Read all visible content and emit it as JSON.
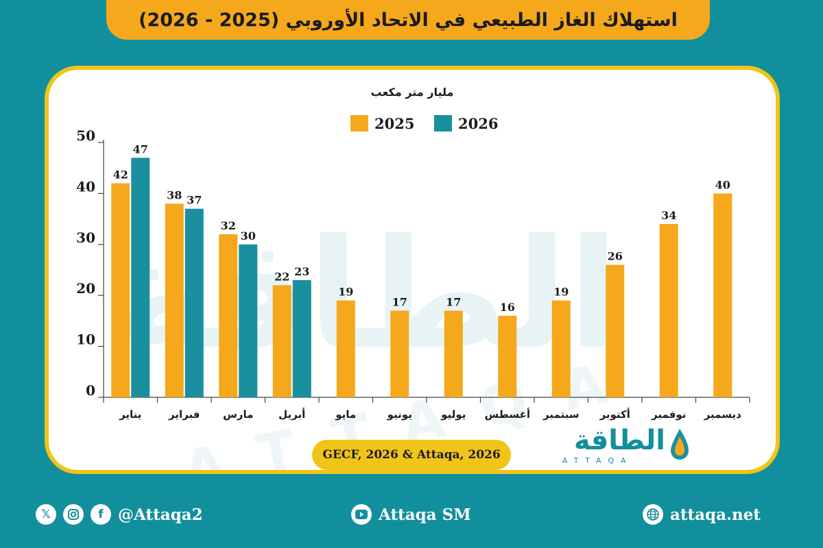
{
  "header": {
    "title": "استهلاك الغاز الطبيعي في الاتحاد الأوروبي (2025 - 2026)"
  },
  "chart_data": {
    "type": "bar",
    "unit_label": "مليار متر مكعب",
    "categories": [
      "يناير",
      "فبراير",
      "مارس",
      "أبريل",
      "مايو",
      "يونيو",
      "يوليو",
      "أغسطس",
      "سبتمبر",
      "أكتوبر",
      "نوفمبر",
      "ديسمبر"
    ],
    "series": [
      {
        "name": "2025",
        "color": "#f5a81c",
        "values": [
          42,
          38,
          32,
          22,
          19,
          17,
          17,
          16,
          19,
          26,
          34,
          40
        ]
      },
      {
        "name": "2026",
        "color": "#1a8fa0",
        "values": [
          47,
          37,
          30,
          23,
          null,
          null,
          null,
          null,
          null,
          null,
          null,
          null
        ]
      }
    ],
    "y_ticks": [
      0,
      10,
      20,
      30,
      40,
      50
    ],
    "ylim": [
      0,
      50
    ],
    "legend_position": "top-center"
  },
  "source": "GECF, 2026 & Attaqa, 2026",
  "logo": {
    "arabic": "الطاقة",
    "latin": "ATTAQA"
  },
  "footer": {
    "social_handle": "@Attaqa2",
    "youtube": "Attaqa SM",
    "website": "attaqa.net",
    "icons": [
      "x-icon",
      "instagram-icon",
      "facebook-icon",
      "youtube-icon",
      "globe-icon"
    ]
  }
}
